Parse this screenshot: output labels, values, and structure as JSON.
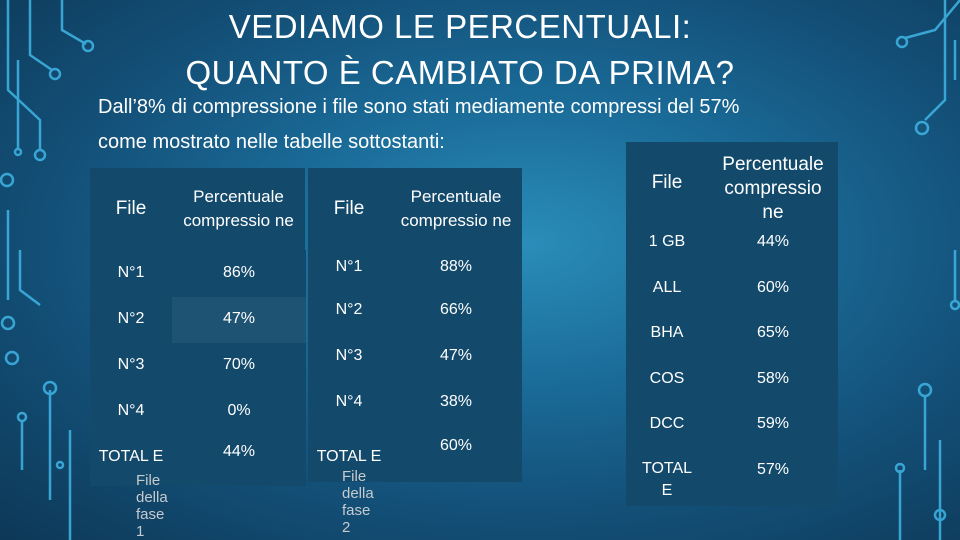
{
  "title": {
    "line1": "VEDIAMO LE PERCENTUALI:",
    "line2": "QUANTO È CAMBIATO DA PRIMA?"
  },
  "intro": {
    "line1": "Dall’8% di compressione i file sono stati mediamente compressi del 57%",
    "line2": "come mostrato nelle tabelle sottostanti:"
  },
  "table1": {
    "headers": [
      "File",
      "Percentuale compressio ne"
    ],
    "rows": [
      [
        "N°1",
        "86%"
      ],
      [
        "N°2",
        "47%"
      ],
      [
        "N°3",
        "70%"
      ],
      [
        "N°4",
        "0%"
      ],
      [
        "TOTAL E",
        "44%"
      ]
    ],
    "caption": "File della fase 1"
  },
  "table2": {
    "headers": [
      "File",
      "Percentuale compressio ne"
    ],
    "rows": [
      [
        "N°1",
        "88%"
      ],
      [
        "N°2",
        "66%"
      ],
      [
        "N°3",
        "47%"
      ],
      [
        "N°4",
        "38%"
      ],
      [
        "TOTAL E",
        "60%"
      ]
    ],
    "caption": "File della fase 2"
  },
  "table3": {
    "headers": [
      "File",
      "Percentuale compressio ne"
    ],
    "rows": [
      [
        "1 GB",
        "44%"
      ],
      [
        "ALL",
        "60%"
      ],
      [
        "BHA",
        "65%"
      ],
      [
        "COS",
        "58%"
      ],
      [
        "DCC",
        "59%"
      ],
      [
        "TOTAL E",
        "57%"
      ]
    ]
  }
}
